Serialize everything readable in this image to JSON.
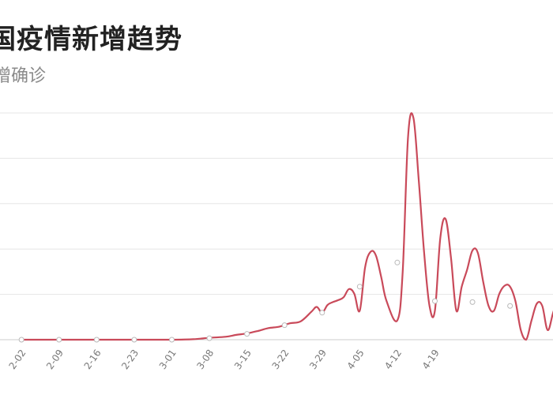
{
  "chart_data": {
    "type": "line",
    "title": "国疫情新增趋势",
    "subtitle": "增确诊",
    "x": [
      "2-02",
      "2-09",
      "2-16",
      "2-23",
      "3-01",
      "3-08",
      "3-15",
      "3-22",
      "3-29",
      "4-05",
      "4-12",
      "4-19"
    ],
    "x_ticks": [
      "2-02",
      "2-09",
      "2-16",
      "2-23",
      "3-01",
      "3-08",
      "3-15",
      "3-22",
      "3-29",
      "4-05",
      "4-12",
      "4-19"
    ],
    "series": [
      {
        "color": "#c94a5a",
        "points": [
          [
            0,
            0
          ],
          [
            7,
            0
          ],
          [
            14,
            0
          ],
          [
            21,
            0
          ],
          [
            28,
            0
          ],
          [
            32,
            1
          ],
          [
            35,
            4
          ],
          [
            38,
            6
          ],
          [
            40,
            10
          ],
          [
            42,
            13
          ],
          [
            44,
            18
          ],
          [
            46,
            24
          ],
          [
            48,
            27
          ],
          [
            50,
            34
          ],
          [
            52,
            38
          ],
          [
            54,
            58
          ],
          [
            55,
            68
          ],
          [
            56,
            56
          ],
          [
            57,
            72
          ],
          [
            58,
            78
          ],
          [
            59,
            82
          ],
          [
            60,
            88
          ],
          [
            61,
            105
          ],
          [
            62,
            95
          ],
          [
            63,
            60
          ],
          [
            64,
            150
          ],
          [
            65,
            182
          ],
          [
            66,
            175
          ],
          [
            67,
            130
          ],
          [
            68,
            80
          ],
          [
            70,
            40
          ],
          [
            71,
            140
          ],
          [
            72,
            420
          ],
          [
            73,
            460
          ],
          [
            74,
            330
          ],
          [
            75,
            180
          ],
          [
            76,
            70
          ],
          [
            77,
            60
          ],
          [
            78,
            210
          ],
          [
            79,
            250
          ],
          [
            80,
            170
          ],
          [
            81,
            60
          ],
          [
            82,
            110
          ],
          [
            83,
            145
          ],
          [
            84,
            185
          ],
          [
            85,
            180
          ],
          [
            86,
            120
          ],
          [
            87,
            70
          ],
          [
            88,
            60
          ],
          [
            89,
            95
          ],
          [
            90,
            112
          ],
          [
            91,
            110
          ],
          [
            92,
            80
          ],
          [
            93,
            20
          ],
          [
            94,
            0
          ],
          [
            95,
            40
          ],
          [
            96,
            75
          ],
          [
            97,
            70
          ],
          [
            98,
            20
          ],
          [
            99,
            55
          ],
          [
            100,
            90
          ]
        ],
        "markers": [
          [
            0,
            0
          ],
          [
            7,
            0
          ],
          [
            14,
            0
          ],
          [
            21,
            0
          ],
          [
            28,
            0
          ],
          [
            35,
            3
          ],
          [
            42,
            12
          ],
          [
            49,
            30
          ],
          [
            56,
            56
          ],
          [
            63,
            110
          ],
          [
            70,
            160
          ],
          [
            77,
            80
          ],
          [
            84,
            78
          ],
          [
            91,
            70
          ]
        ]
      }
    ],
    "ylim": [
      0,
      470
    ],
    "y_gridlines": [
      0,
      94,
      188,
      282,
      376,
      470
    ],
    "grid": "horizontal",
    "x_day_range": [
      -4,
      99
    ]
  }
}
